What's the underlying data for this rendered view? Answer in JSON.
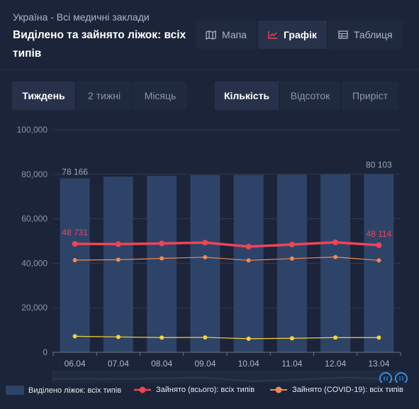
{
  "header": {
    "subtitle": "Україна - Всі медичні заклади",
    "title": "Виділено та зайнято ліжок: всіх типів"
  },
  "view_tabs": [
    {
      "label": "Мапа",
      "icon": "map-icon",
      "active": false
    },
    {
      "label": "Графік",
      "icon": "line-chart-icon",
      "active": true
    },
    {
      "label": "Таблиця",
      "icon": "table-icon",
      "active": false
    }
  ],
  "period_tabs": [
    {
      "label": "Тиждень",
      "active": true
    },
    {
      "label": "2 тижні",
      "active": false
    },
    {
      "label": "Місяць",
      "active": false
    }
  ],
  "metric_tabs": [
    {
      "label": "Кількість",
      "active": true
    },
    {
      "label": "Відсоток",
      "active": false
    },
    {
      "label": "Приріст",
      "active": false
    }
  ],
  "colors": {
    "background": "#1b2438",
    "bar": "#2e4368",
    "occupied_total": "#ef4458",
    "occupied_covid": "#f08a50",
    "third_series": "#f5d43c",
    "accent": "#3b8fe0"
  },
  "chart_data": {
    "type": "bar",
    "categories": [
      "06.04",
      "07.04",
      "08.04",
      "09.04",
      "10.04",
      "11.04",
      "12.04",
      "13.04"
    ],
    "ylim": [
      0,
      100000
    ],
    "yticks": [
      "0",
      "20,000",
      "40,000",
      "60,000",
      "80,000",
      "100,000"
    ],
    "ytick_values": [
      0,
      20000,
      40000,
      60000,
      80000,
      100000
    ],
    "series": [
      {
        "name": "Виділено ліжок: всіх типів",
        "type": "bar",
        "values": [
          78166,
          78900,
          79300,
          79600,
          79700,
          79800,
          79900,
          80103
        ]
      },
      {
        "name": "Зайнято (всього): всіх типів",
        "type": "line",
        "values": [
          48731,
          48600,
          48900,
          49300,
          47500,
          48400,
          49400,
          48114
        ]
      },
      {
        "name": "Зайнято (COVID-19): всіх типів",
        "type": "line",
        "values": [
          41400,
          41600,
          42200,
          42700,
          41300,
          42100,
          42800,
          41300
        ]
      },
      {
        "name": "",
        "type": "line",
        "values": [
          7200,
          6900,
          6600,
          6700,
          6100,
          6300,
          6600,
          6600
        ]
      }
    ],
    "data_labels": {
      "bar_first": "78 166",
      "bar_last": "80 103",
      "line_first": "48 731",
      "line_last": "48 114"
    },
    "grid": true
  },
  "legend": [
    {
      "label": "Виділено ліжок: всіх типів",
      "icon": "bar-swatch-icon"
    },
    {
      "label": "Зайнято (всього): всіх типів",
      "icon": "red-line-marker-icon"
    },
    {
      "label": "Зайнято (COVID-19): всіх типів",
      "icon": "orange-line-marker-icon"
    }
  ]
}
